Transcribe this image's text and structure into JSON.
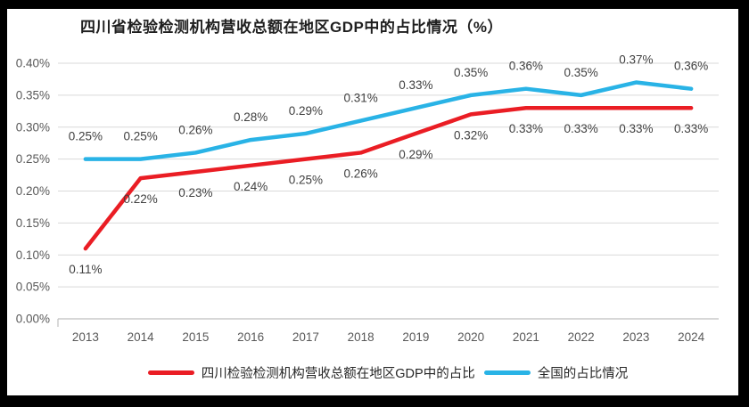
{
  "frame": {
    "color": "#000000"
  },
  "chart_data": {
    "type": "line",
    "title": "四川省检验检测机构营收总额在地区GDP中的占比情况（%）",
    "categories": [
      "2013",
      "2014",
      "2015",
      "2016",
      "2017",
      "2018",
      "2019",
      "2020",
      "2021",
      "2022",
      "2023",
      "2024"
    ],
    "series": [
      {
        "name": "四川检验检测机构营收总额在地区GDP中的占比",
        "color": "#ea1d24",
        "label_position": "below",
        "values": [
          0.11,
          0.22,
          0.23,
          0.24,
          0.25,
          0.26,
          0.29,
          0.32,
          0.33,
          0.33,
          0.33,
          0.33
        ],
        "labels": [
          "0.11%",
          "0.22%",
          "0.23%",
          "0.24%",
          "0.25%",
          "0.26%",
          "0.29%",
          "0.32%",
          "0.33%",
          "0.33%",
          "0.33%",
          "0.33%"
        ]
      },
      {
        "name": "全国的占比情况",
        "color": "#29b3e6",
        "label_position": "above",
        "values": [
          0.25,
          0.25,
          0.26,
          0.28,
          0.29,
          0.31,
          0.33,
          0.35,
          0.36,
          0.35,
          0.37,
          0.36
        ],
        "labels": [
          "0.25%",
          "0.25%",
          "0.26%",
          "0.28%",
          "0.29%",
          "0.31%",
          "0.33%",
          "0.35%",
          "0.36%",
          "0.35%",
          "0.37%",
          "0.36%"
        ]
      }
    ],
    "y_axis": {
      "min": 0,
      "max": 0.4,
      "step": 0.05,
      "tick_labels": [
        "0.00%",
        "0.05%",
        "0.10%",
        "0.15%",
        "0.20%",
        "0.25%",
        "0.30%",
        "0.35%",
        "0.40%"
      ]
    },
    "grid": true,
    "legend_position": "bottom"
  },
  "colors": {
    "background": "#ffffff",
    "frame": "#000000",
    "grid": "#d9d9d9",
    "axis_line": "#bfbfbf",
    "axis_text": "#595959",
    "data_label": "#3f3f3f",
    "title_text": "#1f1f1f",
    "legend_text": "#262626"
  }
}
